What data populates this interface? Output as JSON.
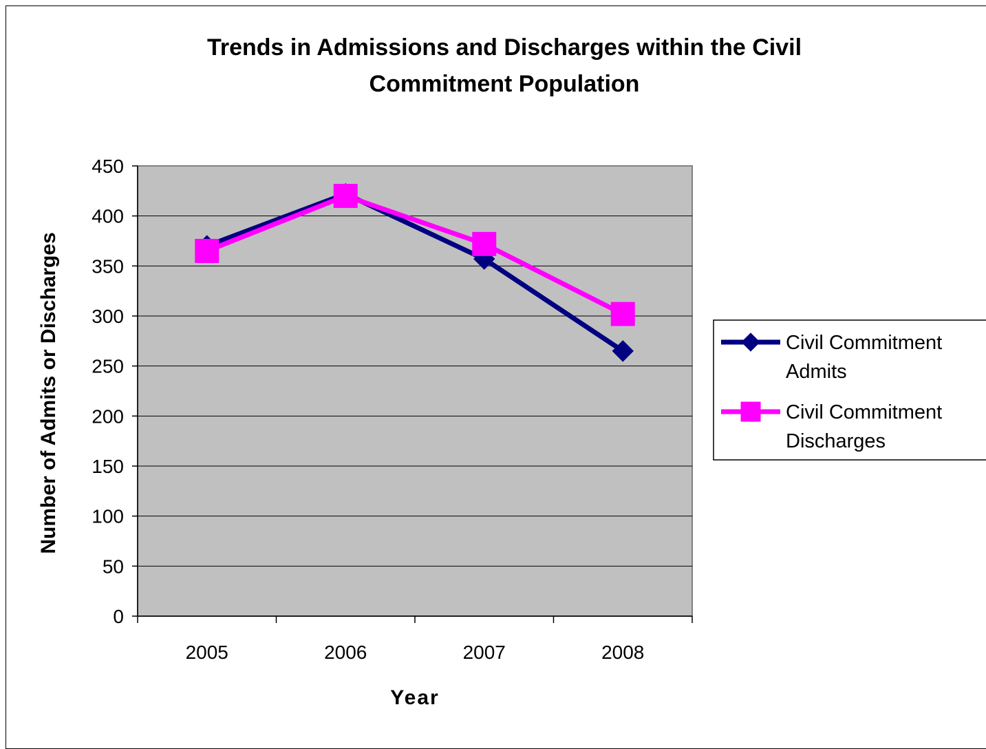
{
  "chart_data": {
    "type": "line",
    "title": [
      "Trends in Admissions and Discharges within the Civil",
      "Commitment Population"
    ],
    "xlabel": "Year",
    "ylabel": "Number of Admits or Discharges",
    "categories": [
      "2005",
      "2006",
      "2007",
      "2008"
    ],
    "ylim": [
      0,
      450
    ],
    "yticks": [
      "0",
      "50",
      "100",
      "150",
      "200",
      "250",
      "300",
      "350",
      "400",
      "450"
    ],
    "grid": true,
    "legend_position": "right",
    "plot_background": "#c0c0c0",
    "series": [
      {
        "name": [
          "Civil Commitment",
          "Admits"
        ],
        "values": [
          370,
          422,
          357,
          265
        ],
        "color": "#000080",
        "marker": "diamond"
      },
      {
        "name": [
          "Civil Commitment",
          "Discharges"
        ],
        "values": [
          365,
          420,
          372,
          302
        ],
        "color": "#ff00ff",
        "marker": "square"
      }
    ]
  }
}
